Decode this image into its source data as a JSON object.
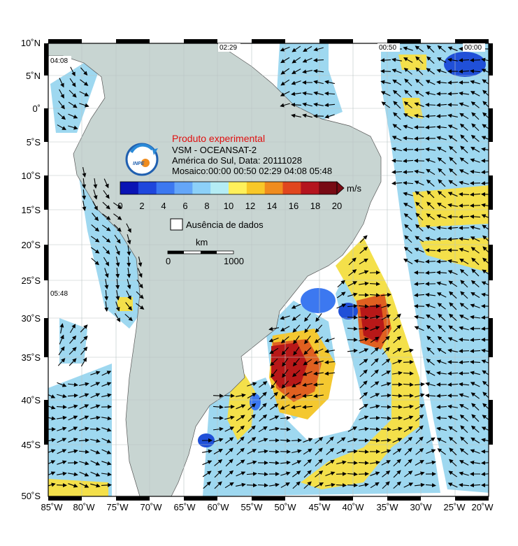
{
  "map": {
    "title": "Produto experimental",
    "satellite": "VSM - OCEANSAT-2",
    "region_date": "América do Sul, Data: 20111028",
    "mosaic": "Mosaico:00:00 00:50 02:29 04:08 05:48",
    "logo_text": "INPE",
    "colorbar": {
      "unit": "m/s",
      "ticks": [
        "0",
        "2",
        "4",
        "6",
        "8",
        "10",
        "12",
        "14",
        "16",
        "18",
        "20"
      ],
      "colors": [
        "#0a14b4",
        "#1e46dc",
        "#3c78f0",
        "#64a6f8",
        "#8cd0f8",
        "#b4ecf4",
        "#fff05a",
        "#f8c828",
        "#f08c1e",
        "#e0461e",
        "#b4141e",
        "#780a14"
      ]
    },
    "no_data_label": "Ausência de dados",
    "scale": {
      "unit": "km",
      "start": "0",
      "end": "1000"
    },
    "lat_labels": [
      "10˚N",
      "5˚N",
      "0˚",
      "5˚S",
      "10˚S",
      "15˚S",
      "20˚S",
      "25˚S",
      "30˚S",
      "35˚S",
      "40˚S",
      "45˚S",
      "50˚S"
    ],
    "lon_labels": [
      "85˚W",
      "80˚W",
      "75˚W",
      "70˚W",
      "65˚W",
      "60˚W",
      "55˚W",
      "50˚W",
      "45˚W",
      "40˚W",
      "35˚W",
      "30˚W",
      "25˚W",
      "20˚W"
    ],
    "time_stamps": [
      "02:29",
      "00:50",
      "00:00",
      "04:08",
      "05:48"
    ],
    "colors": {
      "land": "#c8d5d2",
      "frame": "#000000",
      "title": "#e01010",
      "grid": "#c8d0d0"
    }
  }
}
